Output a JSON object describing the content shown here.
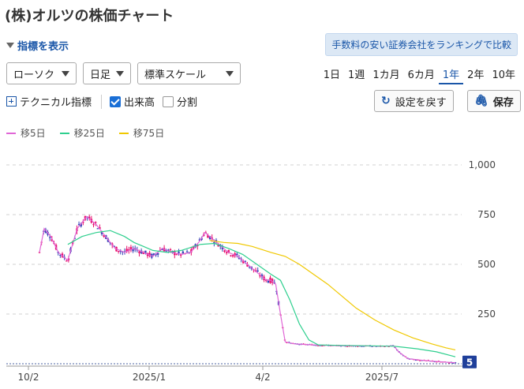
{
  "page": {
    "title": "(株)オルツの株価チャート"
  },
  "toolbar": {
    "show_indicators": "指標を表示",
    "ranking_link": "手数料の安い証券会社をランキングで比較",
    "chart_type": "ローソク",
    "interval": "日足",
    "scale": "標準スケール",
    "periods": [
      "1日",
      "1週",
      "1カ月",
      "6カ月",
      "1年",
      "2年",
      "10年"
    ],
    "active_period": "1年",
    "technical": "テクニカル指標",
    "volume": "出来高",
    "split": "分割",
    "reset": "設定を戻す",
    "save": "保存"
  },
  "legend": [
    {
      "label": "移5日",
      "color": "#e066d6"
    },
    {
      "label": "移25日",
      "color": "#2ecf8e"
    },
    {
      "label": "移75日",
      "color": "#f0c800"
    }
  ],
  "colors": {
    "up": "#e8106d",
    "down": "#3845b8",
    "accent": "#1a56a8"
  },
  "chart_data": {
    "type": "line",
    "y_ticks": [
      "1,000",
      "750",
      "500",
      "250"
    ],
    "x_ticks": [
      "10/2",
      "2025/1",
      "4/2",
      "2025/7"
    ],
    "ylim": [
      0,
      1000
    ],
    "last_price_label": "5",
    "series": [
      {
        "name": "移5日",
        "color": "#e066d6",
        "points": [
          [
            0,
            560
          ],
          [
            5,
            680
          ],
          [
            12,
            640
          ],
          [
            20,
            560
          ],
          [
            30,
            520
          ],
          [
            40,
            680
          ],
          [
            50,
            740
          ],
          [
            60,
            700
          ],
          [
            70,
            640
          ],
          [
            80,
            580
          ],
          [
            90,
            560
          ],
          [
            100,
            580
          ],
          [
            110,
            560
          ],
          [
            120,
            540
          ],
          [
            130,
            580
          ],
          [
            140,
            560
          ],
          [
            150,
            550
          ],
          [
            160,
            560
          ],
          [
            170,
            620
          ],
          [
            175,
            660
          ],
          [
            180,
            640
          ],
          [
            190,
            600
          ],
          [
            200,
            560
          ],
          [
            210,
            540
          ],
          [
            220,
            500
          ],
          [
            230,
            460
          ],
          [
            240,
            420
          ],
          [
            245,
            420
          ],
          [
            250,
            400
          ],
          [
            255,
            250
          ],
          [
            260,
            110
          ],
          [
            270,
            100
          ],
          [
            290,
            95
          ],
          [
            320,
            90
          ],
          [
            340,
            90
          ],
          [
            360,
            88
          ],
          [
            375,
            90
          ],
          [
            380,
            60
          ],
          [
            390,
            25
          ],
          [
            410,
            15
          ],
          [
            430,
            8
          ],
          [
            440,
            5
          ]
        ]
      },
      {
        "name": "移25日",
        "color": "#2ecf8e",
        "points": [
          [
            30,
            600
          ],
          [
            45,
            640
          ],
          [
            60,
            660
          ],
          [
            75,
            670
          ],
          [
            90,
            640
          ],
          [
            100,
            610
          ],
          [
            110,
            590
          ],
          [
            120,
            570
          ],
          [
            135,
            560
          ],
          [
            150,
            570
          ],
          [
            170,
            600
          ],
          [
            185,
            605
          ],
          [
            200,
            580
          ],
          [
            215,
            550
          ],
          [
            230,
            500
          ],
          [
            245,
            450
          ],
          [
            255,
            420
          ],
          [
            265,
            320
          ],
          [
            275,
            200
          ],
          [
            285,
            120
          ],
          [
            295,
            95
          ],
          [
            320,
            92
          ],
          [
            350,
            90
          ],
          [
            375,
            88
          ],
          [
            400,
            75
          ],
          [
            420,
            60
          ],
          [
            440,
            35
          ]
        ]
      },
      {
        "name": "移75日",
        "color": "#f0c800",
        "points": [
          [
            180,
            620
          ],
          [
            195,
            610
          ],
          [
            210,
            605
          ],
          [
            225,
            590
          ],
          [
            245,
            560
          ],
          [
            260,
            540
          ],
          [
            275,
            500
          ],
          [
            290,
            450
          ],
          [
            305,
            400
          ],
          [
            320,
            340
          ],
          [
            335,
            280
          ],
          [
            355,
            220
          ],
          [
            375,
            170
          ],
          [
            395,
            130
          ],
          [
            415,
            100
          ],
          [
            430,
            80
          ],
          [
            440,
            70
          ]
        ]
      }
    ]
  }
}
